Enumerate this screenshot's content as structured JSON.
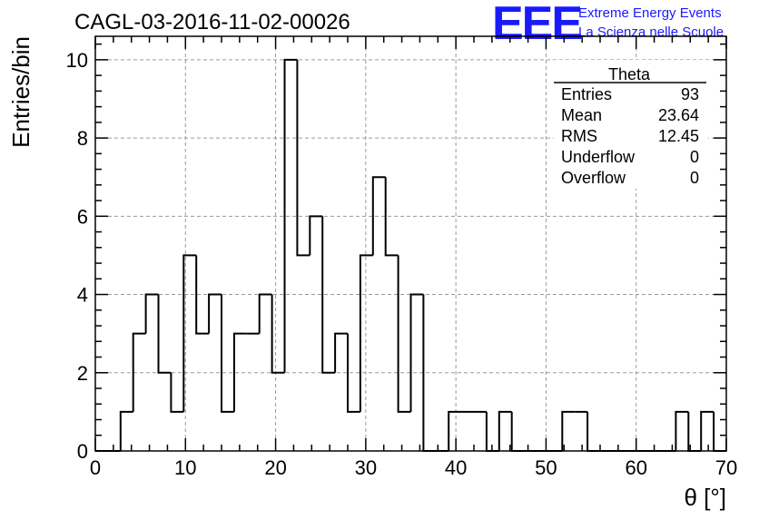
{
  "chart_data": {
    "type": "bar",
    "title": "CAGL-03-2016-11-02-00026",
    "xlabel": "θ [°]",
    "ylabel": "Entries/bin",
    "xlim": [
      0,
      70
    ],
    "ylim": [
      0,
      10.6
    ],
    "x_major_ticks": [
      0,
      10,
      20,
      30,
      40,
      50,
      60,
      70
    ],
    "y_major_ticks": [
      0,
      2,
      4,
      6,
      8,
      10
    ],
    "grid": true,
    "bin_edges": [
      0,
      1.4,
      2.8,
      4.2,
      5.6,
      7.0,
      8.4,
      9.8,
      11.2,
      12.6,
      14.0,
      15.4,
      16.8,
      18.2,
      19.6,
      21.0,
      22.4,
      23.8,
      25.2,
      26.6,
      28.0,
      29.4,
      30.8,
      32.2,
      33.6,
      35.0,
      36.4,
      37.8,
      39.2,
      40.6,
      42.0,
      43.4,
      44.8,
      46.2,
      47.6,
      49.0,
      50.4,
      51.8,
      53.2,
      54.6,
      56.0,
      57.4,
      58.8,
      60.2,
      61.6,
      63.0,
      64.4,
      65.8,
      67.2,
      68.6,
      70.0
    ],
    "values": [
      0,
      0,
      1,
      3,
      4,
      2,
      1,
      5,
      3,
      4,
      1,
      3,
      3,
      4,
      2,
      10,
      5,
      6,
      2,
      3,
      1,
      5,
      7,
      5,
      1,
      4,
      0,
      0,
      1,
      1,
      1,
      0,
      1,
      0,
      0,
      0,
      0,
      1,
      1,
      0,
      0,
      0,
      0,
      0,
      0,
      0,
      1,
      0,
      1,
      0
    ],
    "stats_box": {
      "name": "Theta",
      "rows": [
        {
          "label": "Entries",
          "value": "93"
        },
        {
          "label": "Mean",
          "value": "23.64"
        },
        {
          "label": "RMS",
          "value": "12.45"
        },
        {
          "label": "Underflow",
          "value": "0"
        },
        {
          "label": "Overflow",
          "value": "0"
        }
      ]
    },
    "colors": {
      "line": "#000000",
      "grid": "#9a9a9a",
      "logo": "#1a1aff"
    }
  },
  "logo": {
    "mark": "EEE",
    "line1": "Extreme Energy Events",
    "line2": "La Scienza nelle Scuole"
  }
}
